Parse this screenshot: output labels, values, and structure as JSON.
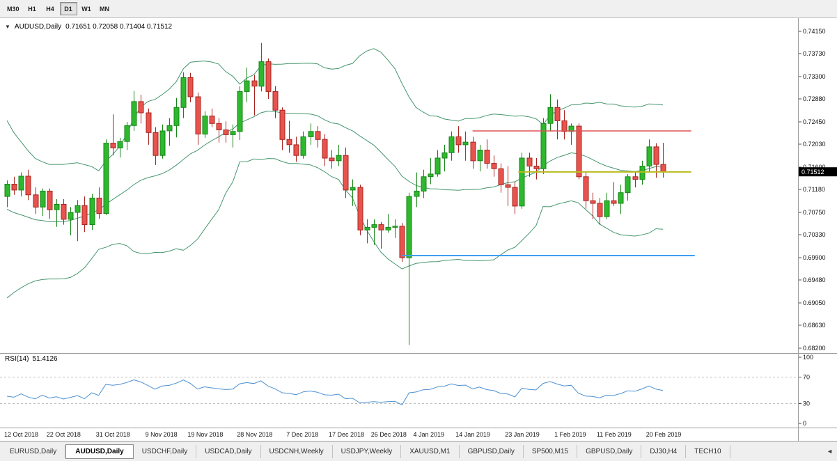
{
  "toolbar": {
    "timeframes": [
      {
        "label": "M30",
        "active": false
      },
      {
        "label": "H1",
        "active": false
      },
      {
        "label": "H4",
        "active": false
      },
      {
        "label": "D1",
        "active": true
      },
      {
        "label": "W1",
        "active": false
      },
      {
        "label": "MN",
        "active": false
      }
    ]
  },
  "chart": {
    "title_symbol": "AUDUSD,Daily",
    "title_ohlc": "0.71651 0.72058 0.71404 0.71512",
    "price_badge": "0.71512",
    "price_scale": [
      "0.74150",
      "0.73730",
      "0.73300",
      "0.72880",
      "0.72450",
      "0.72030",
      "0.71600",
      "0.71180",
      "0.70750",
      "0.70330",
      "0.69900",
      "0.69480",
      "0.69050",
      "0.68630",
      "0.68200"
    ]
  },
  "rsi_panel": {
    "label": "RSI(14)",
    "value": "51.4126",
    "scale": [
      "100",
      "70",
      "30",
      "0"
    ],
    "dashed_levels": [
      70,
      30
    ]
  },
  "tabs": [
    {
      "label": "EURUSD,Daily",
      "active": false
    },
    {
      "label": "AUDUSD,Daily",
      "active": true
    },
    {
      "label": "USDCHF,Daily",
      "active": false
    },
    {
      "label": "USDCAD,Daily",
      "active": false
    },
    {
      "label": "USDCNH,Weekly",
      "active": false
    },
    {
      "label": "USDJPY,Weekly",
      "active": false
    },
    {
      "label": "XAUUSD,M1",
      "active": false
    },
    {
      "label": "GBPUSD,Daily",
      "active": false
    },
    {
      "label": "SP500,M15",
      "active": false
    },
    {
      "label": "GBPUSD,Daily",
      "active": false
    },
    {
      "label": "DJ30,H4",
      "active": false
    },
    {
      "label": "TECH10",
      "active": false
    }
  ],
  "colors": {
    "candle_up_fill": "#2eb82e",
    "candle_up_stroke": "#168516",
    "candle_down_fill": "#e8534d",
    "candle_down_stroke": "#a6241f",
    "bollinger": "#44956c",
    "rsi_line": "#4a90d2",
    "badge_bg": "#000000",
    "badge_text": "#ffffff",
    "separator": "#9c9c9c",
    "panel_bg": "#f0f0f0"
  },
  "chart_data": {
    "type": "candlestick",
    "symbol": "AUDUSD",
    "timeframe": "Daily",
    "ylim": [
      0.68135,
      0.74372
    ],
    "bollinger": {
      "period": 20,
      "deviation": 2
    },
    "rsi": {
      "period": 14,
      "last_value": 51.4126
    },
    "indicator_warmup_closes": [
      0.726,
      0.7245,
      0.7225,
      0.72,
      0.7175,
      0.715,
      0.712,
      0.709,
      0.706,
      0.703,
      0.7,
      0.698,
      0.697,
      0.6975,
      0.699,
      0.701,
      0.7035,
      0.706,
      0.708,
      0.7095
    ],
    "candles": [
      [
        "2018-10-12",
        0.7105,
        0.7135,
        0.7085,
        0.7128
      ],
      [
        "2018-10-15",
        0.7128,
        0.7142,
        0.7108,
        0.7117
      ],
      [
        "2018-10-16",
        0.7117,
        0.715,
        0.7105,
        0.7143
      ],
      [
        "2018-10-17",
        0.7143,
        0.7155,
        0.7098,
        0.7108
      ],
      [
        "2018-10-18",
        0.7108,
        0.7122,
        0.7072,
        0.7085
      ],
      [
        "2018-10-19",
        0.7085,
        0.712,
        0.7068,
        0.7115
      ],
      [
        "2018-10-22",
        0.7115,
        0.712,
        0.7063,
        0.708
      ],
      [
        "2018-10-23",
        0.708,
        0.71,
        0.7048,
        0.709
      ],
      [
        "2018-10-24",
        0.709,
        0.71,
        0.7052,
        0.7062
      ],
      [
        "2018-10-25",
        0.7062,
        0.7085,
        0.7032,
        0.7075
      ],
      [
        "2018-10-26",
        0.7075,
        0.7098,
        0.7021,
        0.7088
      ],
      [
        "2018-10-29",
        0.7088,
        0.7105,
        0.7038,
        0.7052
      ],
      [
        "2018-10-30",
        0.7052,
        0.711,
        0.7042,
        0.7102
      ],
      [
        "2018-10-31",
        0.7102,
        0.7122,
        0.7063,
        0.7073
      ],
      [
        "2018-11-01",
        0.7073,
        0.7212,
        0.707,
        0.7205
      ],
      [
        "2018-11-02",
        0.7205,
        0.7259,
        0.7182,
        0.7196
      ],
      [
        "2018-11-05",
        0.7196,
        0.7215,
        0.7178,
        0.7208
      ],
      [
        "2018-11-06",
        0.7208,
        0.7245,
        0.7192,
        0.7238
      ],
      [
        "2018-11-07",
        0.7238,
        0.7303,
        0.7228,
        0.7283
      ],
      [
        "2018-11-08",
        0.7283,
        0.7296,
        0.7242,
        0.7262
      ],
      [
        "2018-11-09",
        0.7262,
        0.727,
        0.7202,
        0.7225
      ],
      [
        "2018-11-12",
        0.7225,
        0.7235,
        0.7164,
        0.7182
      ],
      [
        "2018-11-13",
        0.7182,
        0.724,
        0.7176,
        0.7228
      ],
      [
        "2018-11-14",
        0.7228,
        0.7252,
        0.72,
        0.7238
      ],
      [
        "2018-11-15",
        0.7238,
        0.729,
        0.7216,
        0.7272
      ],
      [
        "2018-11-16",
        0.7272,
        0.7338,
        0.7252,
        0.7328
      ],
      [
        "2018-11-19",
        0.7328,
        0.7337,
        0.7282,
        0.7292
      ],
      [
        "2018-11-20",
        0.7292,
        0.73,
        0.7202,
        0.7222
      ],
      [
        "2018-11-21",
        0.7222,
        0.7265,
        0.7215,
        0.7256
      ],
      [
        "2018-11-22",
        0.7256,
        0.727,
        0.7235,
        0.7242
      ],
      [
        "2018-11-23",
        0.7242,
        0.7252,
        0.7206,
        0.723
      ],
      [
        "2018-11-26",
        0.723,
        0.7246,
        0.7206,
        0.7221
      ],
      [
        "2018-11-27",
        0.7221,
        0.724,
        0.7197,
        0.7227
      ],
      [
        "2018-11-28",
        0.7227,
        0.7312,
        0.7211,
        0.7302
      ],
      [
        "2018-11-29",
        0.7302,
        0.7347,
        0.7282,
        0.7322
      ],
      [
        "2018-11-30",
        0.7322,
        0.7333,
        0.7257,
        0.7312
      ],
      [
        "2018-12-03",
        0.7312,
        0.7393,
        0.7302,
        0.7358
      ],
      [
        "2018-12-04",
        0.7358,
        0.7364,
        0.7288,
        0.7302
      ],
      [
        "2018-12-05",
        0.7302,
        0.7312,
        0.7252,
        0.7267
      ],
      [
        "2018-12-06",
        0.7267,
        0.7272,
        0.7192,
        0.7212
      ],
      [
        "2018-12-07",
        0.7212,
        0.7247,
        0.7187,
        0.7202
      ],
      [
        "2018-12-10",
        0.7202,
        0.7217,
        0.717,
        0.7182
      ],
      [
        "2018-12-11",
        0.7182,
        0.7227,
        0.7176,
        0.7217
      ],
      [
        "2018-12-12",
        0.7217,
        0.7242,
        0.7202,
        0.7227
      ],
      [
        "2018-12-13",
        0.7227,
        0.7237,
        0.7197,
        0.7212
      ],
      [
        "2018-12-14",
        0.7212,
        0.7222,
        0.7162,
        0.7177
      ],
      [
        "2018-12-17",
        0.7177,
        0.7192,
        0.7157,
        0.7172
      ],
      [
        "2018-12-18",
        0.7172,
        0.7202,
        0.7162,
        0.7182
      ],
      [
        "2018-12-19",
        0.7182,
        0.7197,
        0.7102,
        0.7117
      ],
      [
        "2018-12-20",
        0.7117,
        0.7137,
        0.7087,
        0.7122
      ],
      [
        "2018-12-21",
        0.7122,
        0.7127,
        0.7032,
        0.7042
      ],
      [
        "2018-12-24",
        0.7042,
        0.7062,
        0.7017,
        0.7047
      ],
      [
        "2018-12-26",
        0.7047,
        0.7062,
        0.7014,
        0.7052
      ],
      [
        "2018-12-27",
        0.7052,
        0.7057,
        0.7007,
        0.7042
      ],
      [
        "2018-12-28",
        0.7042,
        0.7072,
        0.7037,
        0.7047
      ],
      [
        "2018-12-31",
        0.7047,
        0.7062,
        0.7027,
        0.7049
      ],
      [
        "2019-01-02",
        0.7049,
        0.7055,
        0.6982,
        0.699
      ],
      [
        "2019-01-03",
        0.699,
        0.7112,
        0.6826,
        0.7105
      ],
      [
        "2019-01-04",
        0.7105,
        0.715,
        0.7085,
        0.7115
      ],
      [
        "2019-01-07",
        0.7115,
        0.7155,
        0.7102,
        0.7142
      ],
      [
        "2019-01-08",
        0.7142,
        0.7177,
        0.7128,
        0.7147
      ],
      [
        "2019-01-09",
        0.7147,
        0.7192,
        0.7142,
        0.7177
      ],
      [
        "2019-01-10",
        0.7177,
        0.7202,
        0.7152,
        0.7187
      ],
      [
        "2019-01-11",
        0.7187,
        0.7227,
        0.7172,
        0.7217
      ],
      [
        "2019-01-14",
        0.7217,
        0.7237,
        0.7187,
        0.7202
      ],
      [
        "2019-01-15",
        0.7202,
        0.7227,
        0.7172,
        0.7207
      ],
      [
        "2019-01-16",
        0.7207,
        0.7217,
        0.7157,
        0.7172
      ],
      [
        "2019-01-17",
        0.7172,
        0.7202,
        0.7152,
        0.7192
      ],
      [
        "2019-01-18",
        0.7192,
        0.7212,
        0.7157,
        0.7167
      ],
      [
        "2019-01-21",
        0.7167,
        0.7182,
        0.7142,
        0.7157
      ],
      [
        "2019-01-22",
        0.7157,
        0.7167,
        0.7112,
        0.7127
      ],
      [
        "2019-01-23",
        0.7127,
        0.7162,
        0.7087,
        0.7122
      ],
      [
        "2019-01-24",
        0.7122,
        0.7132,
        0.7072,
        0.7087
      ],
      [
        "2019-01-25",
        0.7087,
        0.7187,
        0.7082,
        0.7177
      ],
      [
        "2019-01-28",
        0.7177,
        0.7187,
        0.7142,
        0.7162
      ],
      [
        "2019-01-29",
        0.7162,
        0.7177,
        0.7137,
        0.7157
      ],
      [
        "2019-01-30",
        0.7157,
        0.7252,
        0.7147,
        0.7242
      ],
      [
        "2019-01-31",
        0.7242,
        0.7297,
        0.7227,
        0.7272
      ],
      [
        "2019-02-01",
        0.7272,
        0.7287,
        0.7212,
        0.7247
      ],
      [
        "2019-02-04",
        0.7247,
        0.7267,
        0.7212,
        0.7227
      ],
      [
        "2019-02-05",
        0.7227,
        0.7242,
        0.7202,
        0.7237
      ],
      [
        "2019-02-06",
        0.7237,
        0.7242,
        0.7137,
        0.7142
      ],
      [
        "2019-02-07",
        0.7142,
        0.7152,
        0.7082,
        0.7097
      ],
      [
        "2019-02-08",
        0.7097,
        0.7112,
        0.7062,
        0.7092
      ],
      [
        "2019-02-11",
        0.7092,
        0.7102,
        0.7052,
        0.7067
      ],
      [
        "2019-02-12",
        0.7067,
        0.7112,
        0.7062,
        0.7097
      ],
      [
        "2019-02-13",
        0.7097,
        0.7132,
        0.7087,
        0.7092
      ],
      [
        "2019-02-14",
        0.7092,
        0.7127,
        0.7072,
        0.7112
      ],
      [
        "2019-02-15",
        0.7112,
        0.7147,
        0.7097,
        0.7142
      ],
      [
        "2019-02-18",
        0.7142,
        0.7152,
        0.7122,
        0.7137
      ],
      [
        "2019-02-19",
        0.7137,
        0.7172,
        0.7127,
        0.7162
      ],
      [
        "2019-02-20",
        0.7162,
        0.7212,
        0.7152,
        0.7198
      ],
      [
        "2019-02-21",
        0.7198,
        0.7205,
        0.714,
        0.7165
      ],
      [
        "2019-02-22",
        0.71651,
        0.72058,
        0.71404,
        0.71512
      ]
    ],
    "hlines": [
      {
        "name": "resistance-line-red",
        "price": 0.7228,
        "color": "#df5353",
        "from": 66,
        "to": 97,
        "width": 1.4
      },
      {
        "name": "price-level-line-yellow",
        "price": 0.7151,
        "color": "#b9bb1e",
        "from": 72.5,
        "to": 97,
        "width": 2
      },
      {
        "name": "support-line-blue",
        "price": 0.6994,
        "color": "#3f9ff0",
        "from": 56,
        "to": 97.5,
        "width": 2
      }
    ],
    "date_ticks": [
      {
        "label": "12 Oct 2018",
        "i": 0
      },
      {
        "label": "22 Oct 2018",
        "i": 6
      },
      {
        "label": "31 Oct 2018",
        "i": 13
      },
      {
        "label": "9 Nov 2018",
        "i": 20
      },
      {
        "label": "19 Nov 2018",
        "i": 26
      },
      {
        "label": "28 Nov 2018",
        "i": 33
      },
      {
        "label": "7 Dec 2018",
        "i": 40
      },
      {
        "label": "17 Dec 2018",
        "i": 46
      },
      {
        "label": "26 Dec 2018",
        "i": 52
      },
      {
        "label": "4 Jan 2019",
        "i": 58
      },
      {
        "label": "14 Jan 2019",
        "i": 64
      },
      {
        "label": "23 Jan 2019",
        "i": 71
      },
      {
        "label": "1 Feb 2019",
        "i": 78
      },
      {
        "label": "11 Feb 2019",
        "i": 84
      },
      {
        "label": "20 Feb 2019",
        "i": 91
      }
    ]
  }
}
